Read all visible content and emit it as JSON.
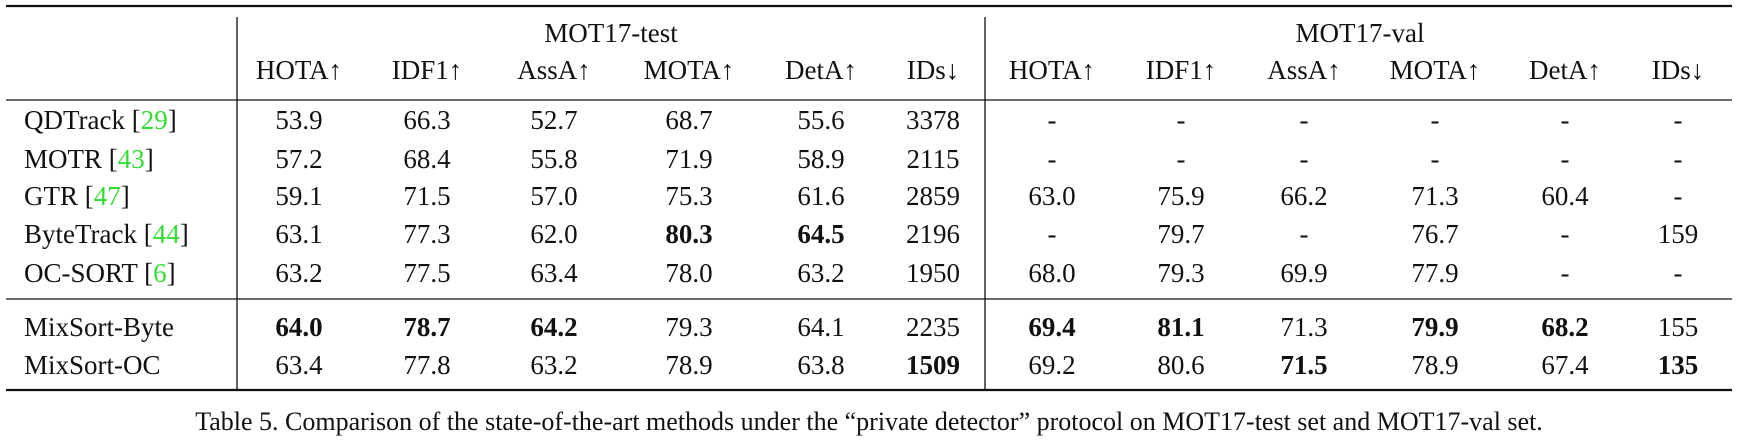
{
  "table": {
    "groups": [
      "MOT17-test",
      "MOT17-val"
    ],
    "columns": [
      "HOTA↑",
      "IDF1↑",
      "AssA↑",
      "MOTA↑",
      "DetA↑",
      "IDs↓",
      "HOTA↑",
      "IDF1↑",
      "AssA↑",
      "MOTA↑",
      "DetA↑",
      "IDs↓"
    ],
    "rows": [
      {
        "label": [
          "QDTrack [",
          "29",
          "]"
        ],
        "cells": [
          "53.9",
          "66.3",
          "52.7",
          "68.7",
          "55.6",
          "3378",
          "-",
          "-",
          "-",
          "-",
          "-",
          "-"
        ],
        "bold": []
      },
      {
        "label": [
          "MOTR [",
          "43",
          "]"
        ],
        "cells": [
          "57.2",
          "68.4",
          "55.8",
          "71.9",
          "58.9",
          "2115",
          "-",
          "-",
          "-",
          "-",
          "-",
          "-"
        ],
        "bold": []
      },
      {
        "label": [
          "GTR [",
          "47",
          "]"
        ],
        "cells": [
          "59.1",
          "71.5",
          "57.0",
          "75.3",
          "61.6",
          "2859",
          "63.0",
          "75.9",
          "66.2",
          "71.3",
          "60.4",
          "-"
        ],
        "bold": []
      },
      {
        "label": [
          "ByteTrack [",
          "44",
          "]"
        ],
        "cells": [
          "63.1",
          "77.3",
          "62.0",
          "80.3",
          "64.5",
          "2196",
          "-",
          "79.7",
          "-",
          "76.7",
          "-",
          "159"
        ],
        "bold": [
          3,
          4
        ]
      },
      {
        "label": [
          "OC-SORT [",
          "6",
          "]"
        ],
        "cells": [
          "63.2",
          "77.5",
          "63.4",
          "78.0",
          "63.2",
          "1950",
          "68.0",
          "79.3",
          "69.9",
          "77.9",
          "-",
          "-"
        ],
        "bold": []
      },
      {
        "label": [
          "MixSort-Byte"
        ],
        "cells": [
          "64.0",
          "78.7",
          "64.2",
          "79.3",
          "64.1",
          "2235",
          "69.4",
          "81.1",
          "71.3",
          "79.9",
          "68.2",
          "155"
        ],
        "bold": [
          0,
          1,
          2,
          6,
          7,
          9,
          10
        ]
      },
      {
        "label": [
          "MixSort-OC"
        ],
        "cells": [
          "63.4",
          "77.8",
          "63.2",
          "78.9",
          "63.8",
          "1509",
          "69.2",
          "80.6",
          "71.5",
          "78.9",
          "67.4",
          "135"
        ],
        "bold": [
          5,
          8,
          11
        ]
      }
    ]
  },
  "caption": "Table 5. Comparison of the state-of-the-art methods under the “private detector” protocol on MOT17-test set and MOT17-val set."
}
